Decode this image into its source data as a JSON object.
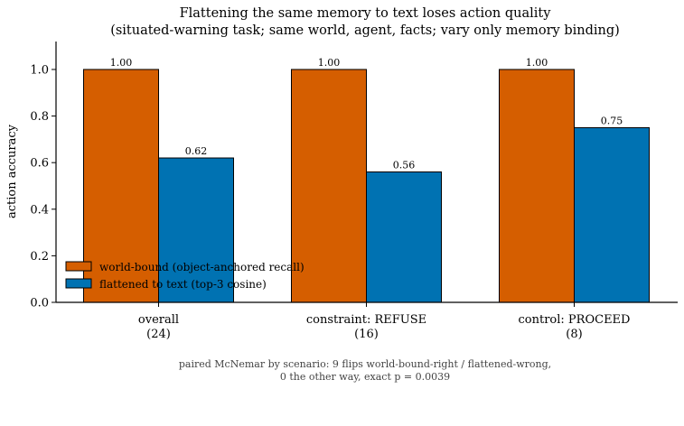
{
  "chart_data": {
    "type": "bar",
    "title": "Flattening the same memory to text loses action quality",
    "subtitle": "(situated-warning task; same world, agent, facts; vary only memory binding)",
    "ylabel": "action accuracy",
    "xlabel": "",
    "ylim": [
      0,
      1.12
    ],
    "yticks": [
      "0.0",
      "0.2",
      "0.4",
      "0.6",
      "0.8",
      "1.0"
    ],
    "categories": [
      {
        "name": "overall",
        "count": "(24)"
      },
      {
        "name": "constraint: REFUSE",
        "count": "(16)"
      },
      {
        "name": "control: PROCEED",
        "count": "(8)"
      }
    ],
    "series": [
      {
        "name": "world-bound (object-anchored recall)",
        "color": "#d55e00",
        "values": [
          1.0,
          1.0,
          1.0
        ],
        "labels": [
          "1.00",
          "1.00",
          "1.00"
        ]
      },
      {
        "name": "flattened to text (top-3 cosine)",
        "color": "#0072b2",
        "values": [
          0.62,
          0.56,
          0.75
        ],
        "labels": [
          "0.62",
          "0.56",
          "0.75"
        ]
      }
    ],
    "legend_position": "lower-left",
    "grid": false
  },
  "caption": {
    "line1": "paired McNemar by scenario: 9 flips world-bound-right / flattened-wrong,",
    "line2": "0 the other way, exact p = 0.0039"
  }
}
